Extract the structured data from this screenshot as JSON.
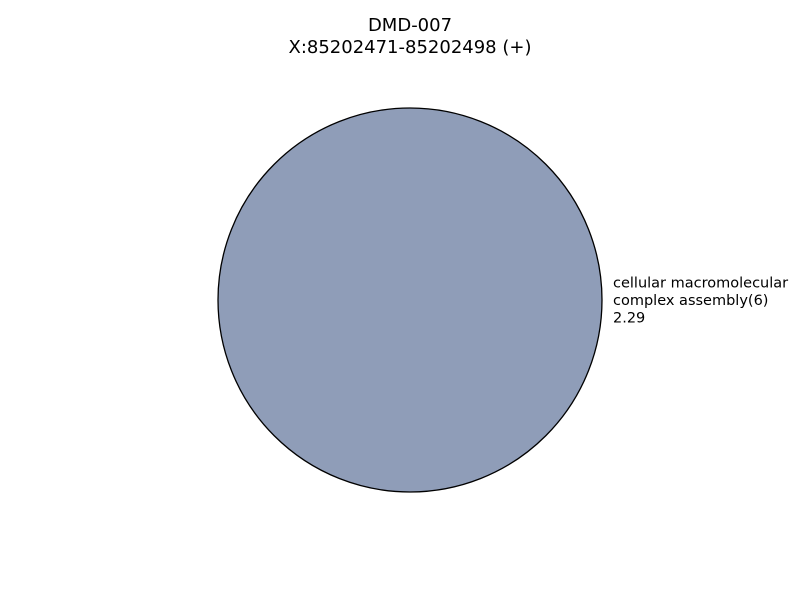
{
  "chart_data": {
    "type": "pie",
    "title": "DMD-007",
    "subtitle": "X:85202471-85202498 (+)",
    "slices": [
      {
        "label_lines": [
          "cellular macromolecular",
          "complex assembly(6)",
          "2.29"
        ],
        "value": 2.29,
        "color": "#8f9db8"
      }
    ],
    "edge_color": "#000000"
  }
}
